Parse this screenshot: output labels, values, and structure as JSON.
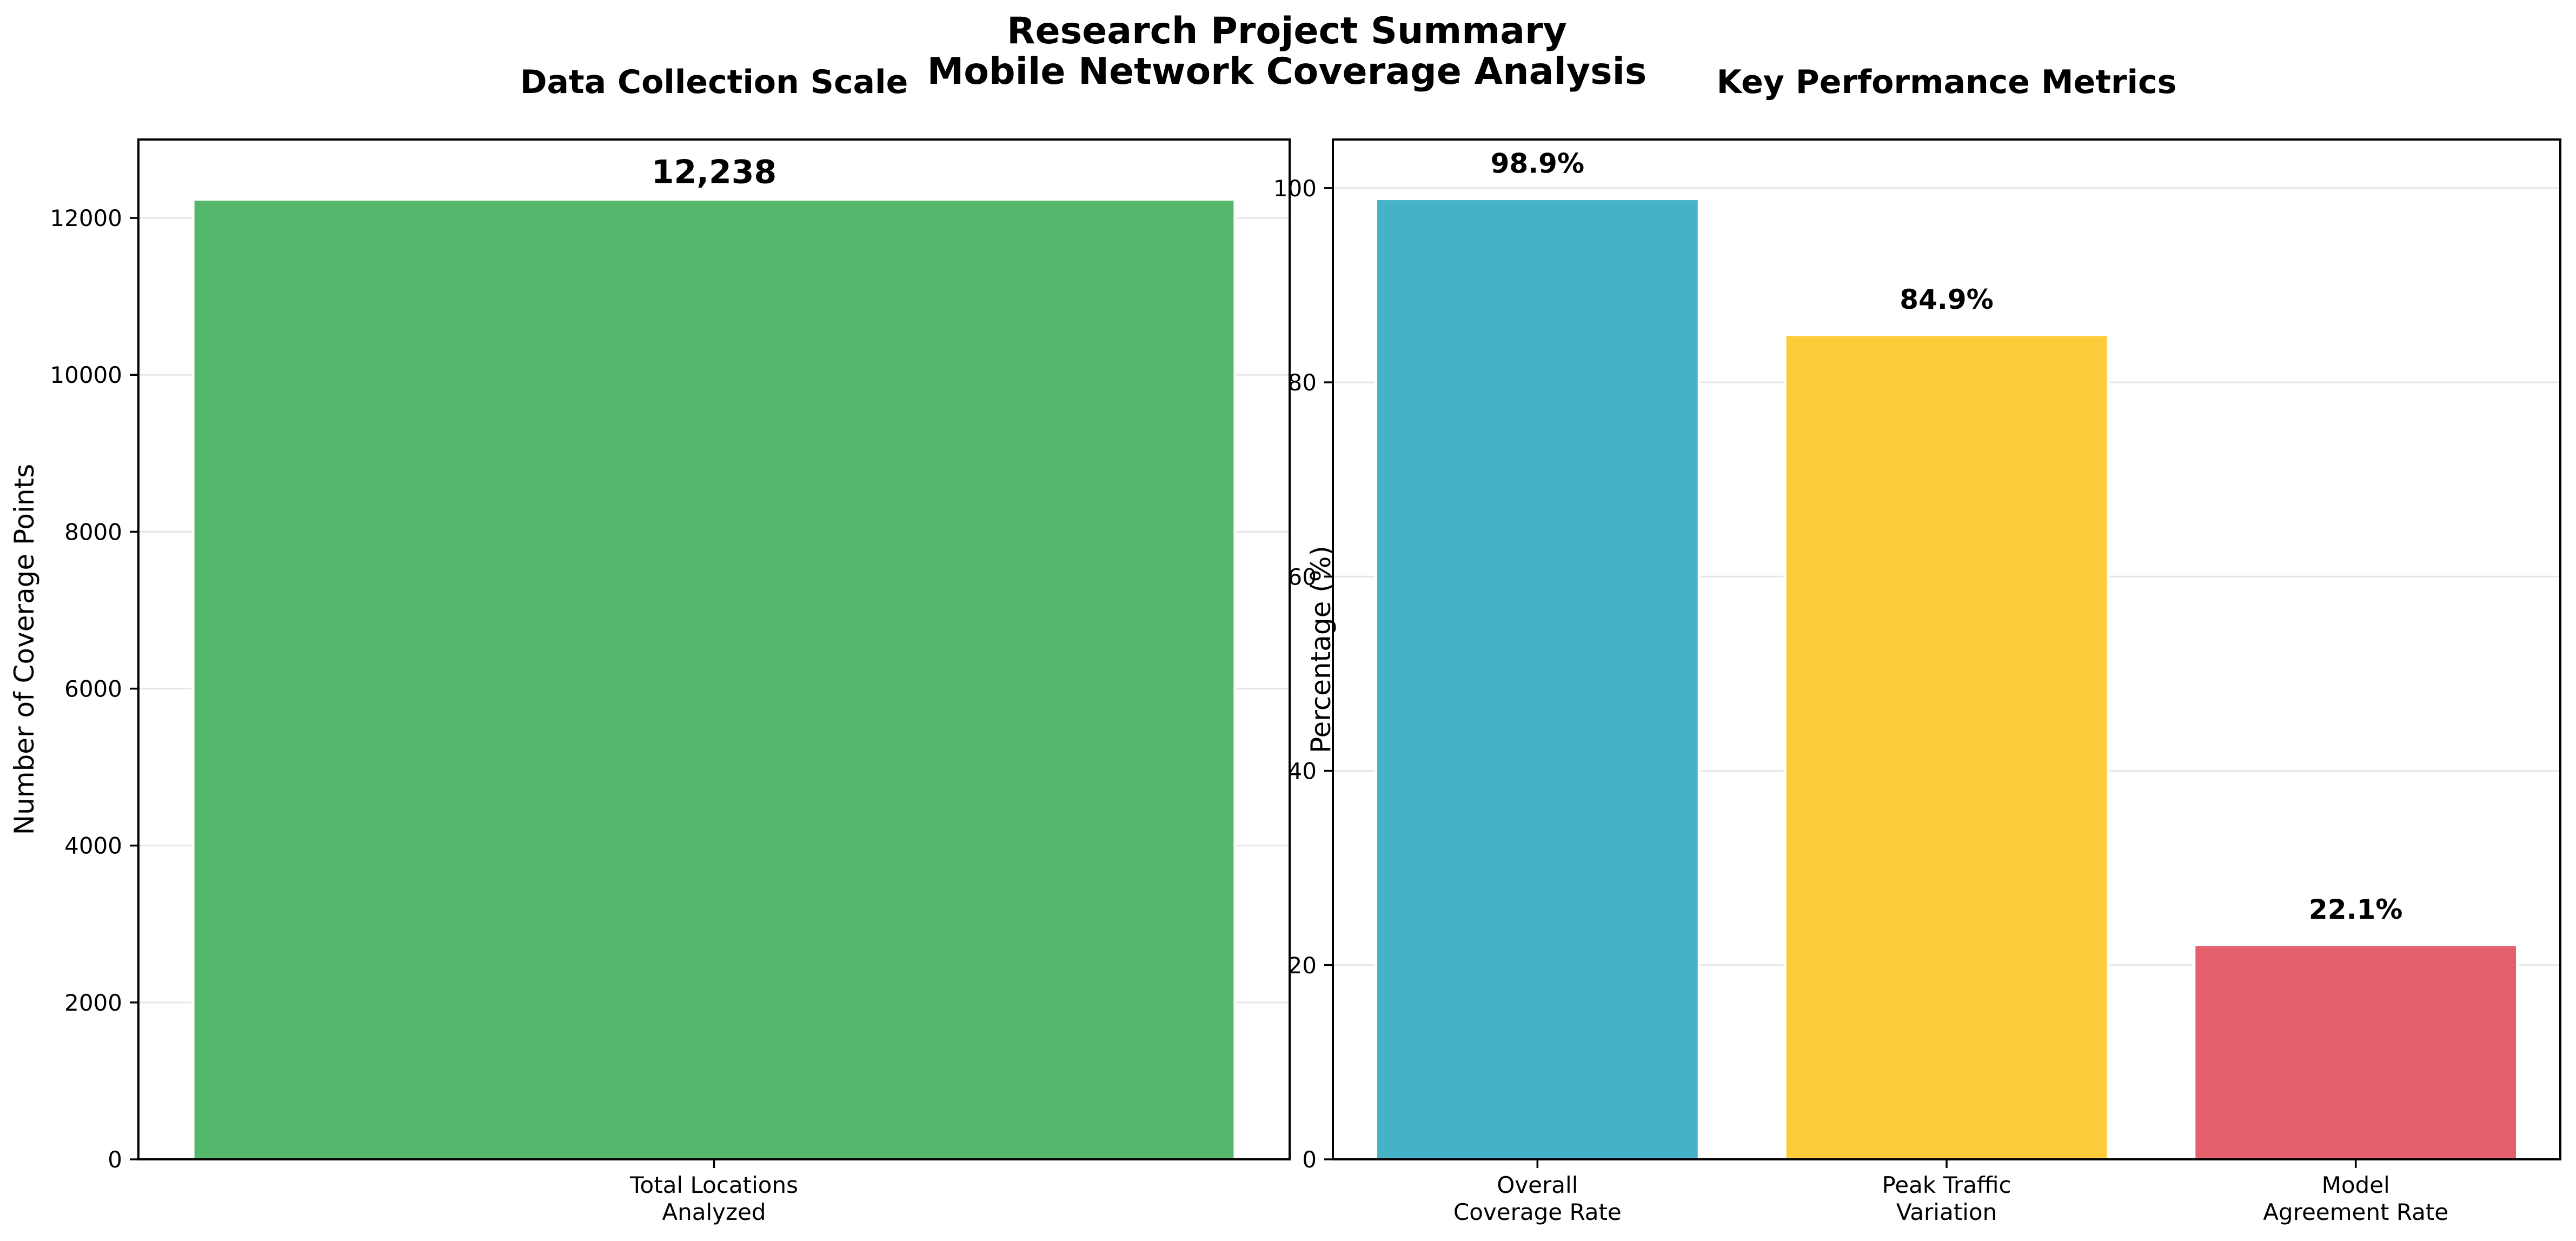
{
  "figure": {
    "title_line1": "Research Project Summary",
    "title_line2": "Mobile Network Coverage Analysis"
  },
  "chart_data": [
    {
      "type": "bar",
      "title": "Data Collection Scale",
      "xlabel": "",
      "ylabel": "Number of Coverage Points",
      "categories": [
        [
          "Total Locations",
          "Analyzed"
        ]
      ],
      "values": [
        12238
      ],
      "data_labels": [
        "12,238"
      ],
      "colors": [
        "#55b76b"
      ],
      "ylim": [
        0,
        13000
      ],
      "yticks": [
        0,
        2000,
        4000,
        6000,
        8000,
        10000,
        12000
      ],
      "grid": true
    },
    {
      "type": "bar",
      "title": "Key Performance Metrics",
      "xlabel": "",
      "ylabel": "Percentage (%)",
      "categories": [
        [
          "Overall",
          "Coverage Rate"
        ],
        [
          "Peak Traffic",
          "Variation"
        ],
        [
          "Model",
          "Agreement Rate"
        ]
      ],
      "values": [
        98.9,
        84.9,
        22.1
      ],
      "data_labels": [
        "98.9%",
        "84.9%",
        "22.1%"
      ],
      "colors": [
        "#45b2c7",
        "#fecb3b",
        "#e3606c"
      ],
      "ylim": [
        0,
        105
      ],
      "yticks": [
        0,
        20,
        40,
        60,
        80,
        100
      ],
      "grid": true
    }
  ]
}
